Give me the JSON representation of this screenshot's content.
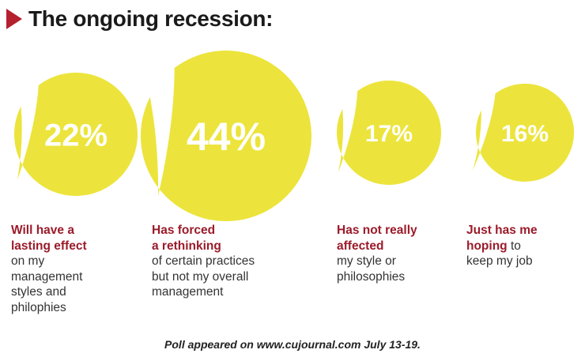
{
  "chart_data": {
    "type": "bubble",
    "title": "The ongoing recession:",
    "unit": "%",
    "categories": [
      {
        "value": 22,
        "label_bold": "Will have a\nlasting effect",
        "label_rest": "on my\nmanagement\nstyles and\nphilophies"
      },
      {
        "value": 44,
        "label_bold": "Has forced\na rethinking",
        "label_rest": "of certain practices\nbut not my overall\nmanagement"
      },
      {
        "value": 17,
        "label_bold": "Has not really\naffected",
        "label_rest": "my style or\nphilosophies"
      },
      {
        "value": 16,
        "label_bold": "Just has me\nhoping",
        "label_rest": "to\nkeep my job"
      }
    ],
    "footnote": "Poll appeared on www.cujournal.com July 13-19."
  },
  "colors": {
    "bubble": "#ece43c",
    "bubble_text": "#ffffff",
    "label_bold": "#9b1b2a",
    "label_text": "#333333",
    "title_marker": "#b5202e"
  }
}
